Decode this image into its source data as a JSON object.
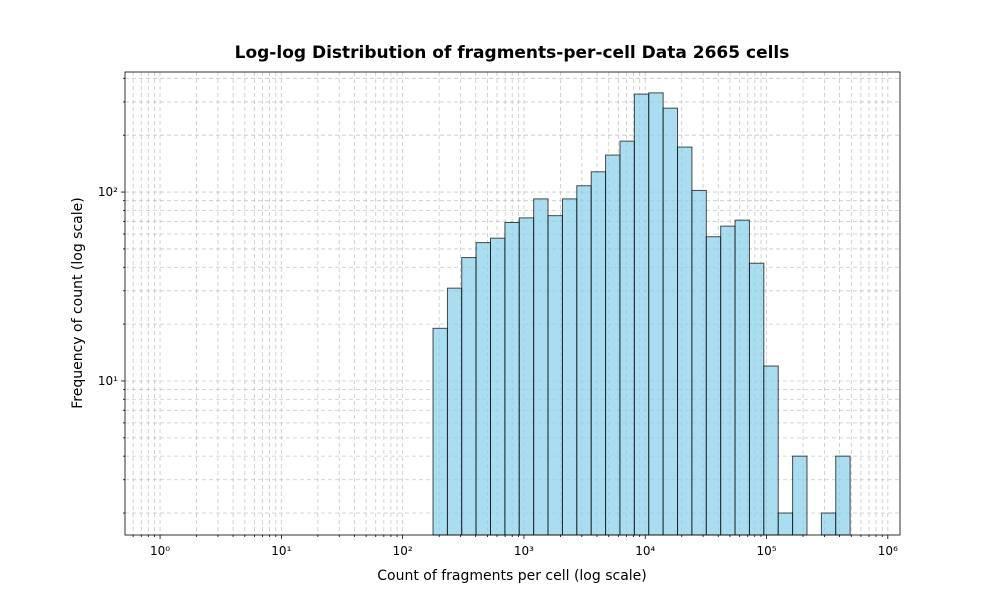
{
  "chart_data": {
    "type": "histogram",
    "title": "Log-log Distribution of fragments-per-cell Data 2665 cells",
    "xlabel": "Count of fragments per cell (log scale)",
    "ylabel": "Frequency of count (log scale)",
    "bins": [
      178,
      234,
      307,
      403,
      530,
      697,
      915,
      1203,
      1580,
      2077,
      2729,
      3586,
      4712,
      6192,
      8137,
      10691,
      14049,
      18460,
      24257,
      31873,
      41879,
      55029,
      72310,
      95015,
      124853,
      164059,
      215571,
      283266,
      372200,
      489078
    ],
    "values": [
      19,
      31,
      45,
      54,
      57,
      69,
      73,
      92,
      75,
      92,
      108,
      128,
      157,
      186,
      330,
      335,
      278,
      173,
      102,
      58,
      66,
      71,
      42,
      12,
      2,
      4,
      0,
      2,
      4
    ],
    "color": "#87ceeb",
    "edgecolor": "#000000",
    "xscale": "log",
    "yscale": "log",
    "xlim": [
      0.514,
      1260000
    ],
    "ylim": [
      1.53,
      432
    ],
    "xticks": [
      {
        "value": 1,
        "label": "10⁰"
      },
      {
        "value": 10,
        "label": "10¹"
      },
      {
        "value": 100,
        "label": "10²"
      },
      {
        "value": 1000,
        "label": "10³"
      },
      {
        "value": 10000,
        "label": "10⁴"
      },
      {
        "value": 100000,
        "label": "10⁵"
      },
      {
        "value": 1000000,
        "label": "10⁶"
      }
    ],
    "yticks": [
      {
        "value": 10,
        "label": "10¹"
      },
      {
        "value": 100,
        "label": "10²"
      }
    ],
    "xminorticks": [
      0.6,
      0.7,
      0.8,
      0.9,
      2,
      3,
      4,
      5,
      6,
      7,
      8,
      9,
      20,
      30,
      40,
      50,
      60,
      70,
      80,
      90,
      200,
      300,
      400,
      500,
      600,
      700,
      800,
      900,
      2000,
      3000,
      4000,
      5000,
      6000,
      7000,
      8000,
      9000,
      20000,
      30000,
      40000,
      50000,
      60000,
      70000,
      80000,
      90000,
      200000,
      300000,
      400000,
      500000,
      600000,
      700000,
      800000,
      900000
    ],
    "yminorticks": [
      2,
      3,
      4,
      5,
      6,
      7,
      8,
      9,
      20,
      30,
      40,
      50,
      60,
      70,
      80,
      90,
      200,
      300,
      400
    ],
    "grid": true
  }
}
